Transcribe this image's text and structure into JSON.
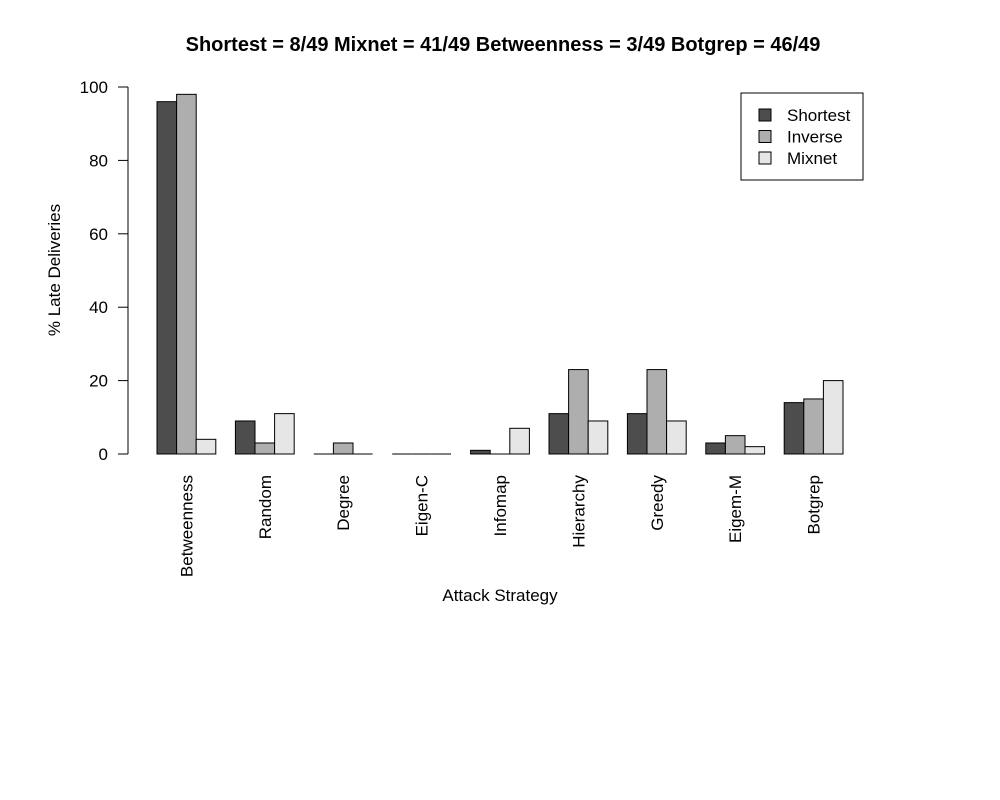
{
  "chart_data": {
    "type": "bar",
    "title": "Shortest = 8/49 Mixnet = 41/49 Betweenness = 3/49 Botgrep = 46/49",
    "xlabel": "Attack Strategy",
    "ylabel": "% Late Deliveries",
    "ylim": [
      0,
      100
    ],
    "yticks": [
      0,
      20,
      40,
      60,
      80,
      100
    ],
    "categories": [
      "Betweenness",
      "Random",
      "Degree",
      "Eigen-C",
      "Infomap",
      "Hierarchy",
      "Greedy",
      "Eigem-M",
      "Botgrep"
    ],
    "series": [
      {
        "name": "Shortest",
        "color": "#4d4d4d",
        "values": [
          96,
          9,
          0,
          0,
          1,
          11,
          11,
          3,
          14
        ]
      },
      {
        "name": "Inverse",
        "color": "#aeaeae",
        "values": [
          98,
          3,
          3,
          0,
          0,
          23,
          23,
          5,
          15
        ]
      },
      {
        "name": "Mixnet",
        "color": "#e6e6e6",
        "values": [
          4,
          11,
          0,
          0,
          7,
          9,
          9,
          2,
          20
        ]
      }
    ],
    "grid": false,
    "legend_position": "top-right"
  }
}
